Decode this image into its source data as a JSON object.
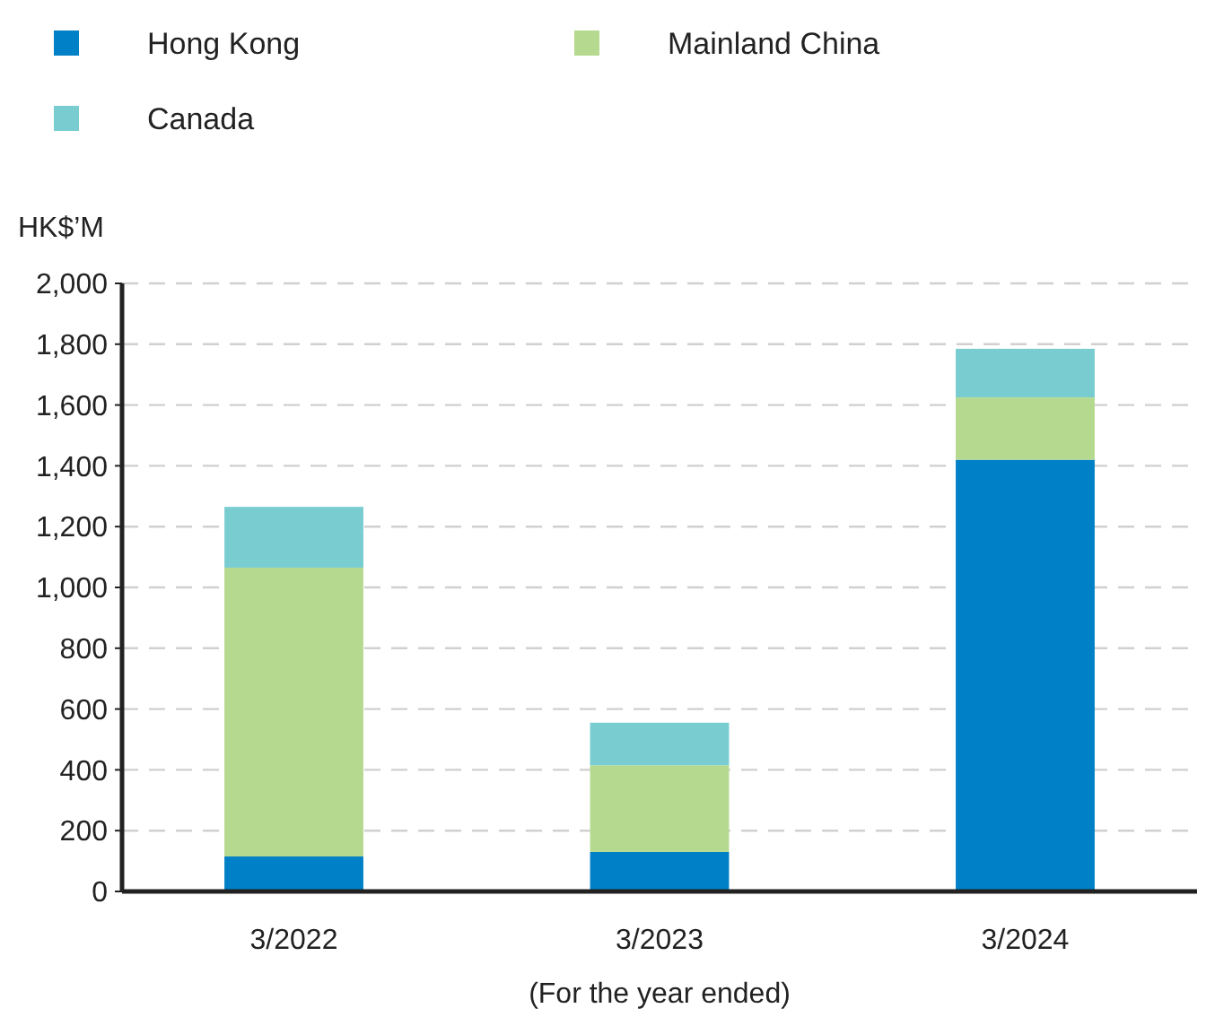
{
  "chart_data": {
    "type": "bar",
    "stacked": true,
    "ylabel": "HK$’M",
    "xlabel": "(For the year ended)",
    "categories": [
      "3/2022",
      "3/2023",
      "3/2024"
    ],
    "series": [
      {
        "name": "Hong Kong",
        "color": "#0080c6",
        "values": [
          115,
          130,
          1420
        ]
      },
      {
        "name": "Mainland China",
        "color": "#b5d98f",
        "values": [
          950,
          285,
          205
        ]
      },
      {
        "name": "Canada",
        "color": "#79cdd0",
        "values": [
          200,
          140,
          160
        ]
      }
    ],
    "ylim": [
      0,
      2000
    ],
    "yticks": [
      {
        "value": 0,
        "label": "0"
      },
      {
        "value": 200,
        "label": "200"
      },
      {
        "value": 400,
        "label": "400"
      },
      {
        "value": 600,
        "label": "600"
      },
      {
        "value": 800,
        "label": "800"
      },
      {
        "value": 1000,
        "label": "1,000"
      },
      {
        "value": 1200,
        "label": "1,200"
      },
      {
        "value": 1400,
        "label": "1,400"
      },
      {
        "value": 1600,
        "label": "1,600"
      },
      {
        "value": 1800,
        "label": "1,800"
      },
      {
        "value": 2000,
        "label": "2,000"
      }
    ],
    "grid": "y",
    "legend": "top left"
  }
}
